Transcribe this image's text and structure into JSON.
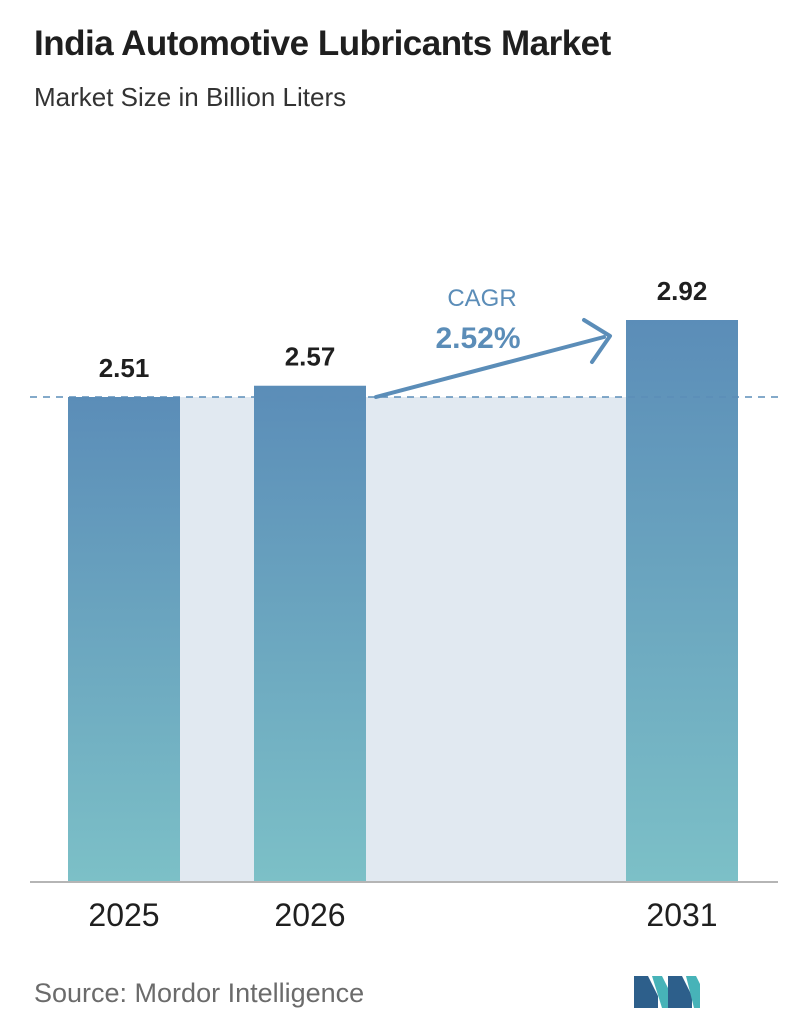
{
  "title": "India Automotive Lubricants Market",
  "subtitle": "Market Size in Billion Liters",
  "source_text": "Source:  Mordor Intelligence",
  "logo_name": "mordor-intelligence-logo",
  "colors": {
    "bar_top": "#5b8db8",
    "bar_bottom": "#7cc0c7",
    "band": "#e1e9f1",
    "cagr": "#5b8db8",
    "dashed_line": "#5b8db8",
    "axis": "#b5b5b5"
  },
  "cagr": {
    "label": "CAGR",
    "value": "2.52%"
  },
  "chart_data": {
    "type": "bar",
    "categories": [
      "2025",
      "2026",
      "2031"
    ],
    "values": [
      2.51,
      2.57,
      2.92
    ],
    "value_labels": [
      "2.51",
      "2.57",
      "2.92"
    ],
    "title": "India Automotive Lubricants Market",
    "subtitle": "Market Size in Billion Liters",
    "xlabel": "",
    "ylabel": "",
    "grid": false,
    "legend": "none",
    "reference_line_value": 2.51
  }
}
